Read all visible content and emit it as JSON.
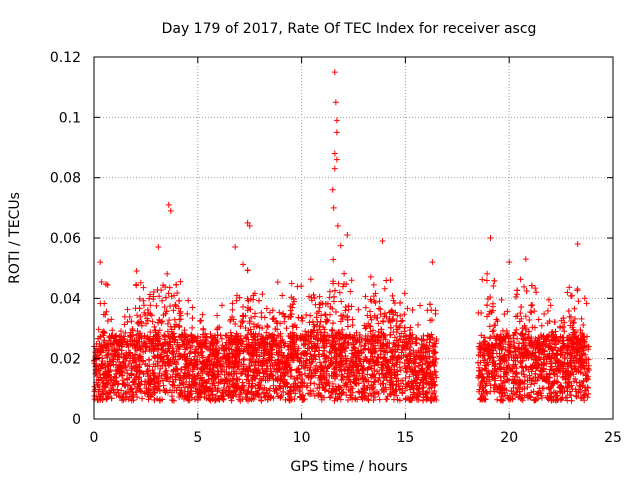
{
  "chart_data": {
    "type": "scatter",
    "title": "Day 179 of 2017, Rate Of TEC Index for receiver ascg",
    "xlabel": "GPS time / hours",
    "ylabel": "ROTI / TECUs",
    "xlim": [
      0,
      25
    ],
    "ylim": [
      0,
      0.12
    ],
    "x_ticks": [
      0,
      5,
      10,
      15,
      20,
      25
    ],
    "x_tick_labels": [
      "0",
      "5",
      "10",
      "15",
      "20",
      "25"
    ],
    "y_ticks": [
      0,
      0.02,
      0.04,
      0.06,
      0.08,
      0.1,
      0.12
    ],
    "y_tick_labels": [
      "0",
      "0.02",
      "0.04",
      "0.06",
      "0.08",
      "0.1",
      "0.12"
    ],
    "grid": true,
    "marker": "+",
    "series_color": "#ff0000",
    "data_gaps_hours": [
      [
        16.5,
        18.5
      ]
    ],
    "highlighted_points": [
      {
        "x": 11.6,
        "y": 0.115
      },
      {
        "x": 11.65,
        "y": 0.105
      },
      {
        "x": 11.7,
        "y": 0.099
      },
      {
        "x": 11.7,
        "y": 0.095
      },
      {
        "x": 11.6,
        "y": 0.088
      },
      {
        "x": 11.7,
        "y": 0.086
      },
      {
        "x": 11.6,
        "y": 0.083
      },
      {
        "x": 11.5,
        "y": 0.076
      },
      {
        "x": 11.55,
        "y": 0.07
      },
      {
        "x": 11.75,
        "y": 0.064
      },
      {
        "x": 3.6,
        "y": 0.071
      },
      {
        "x": 3.7,
        "y": 0.069
      },
      {
        "x": 7.4,
        "y": 0.065
      },
      {
        "x": 7.5,
        "y": 0.064
      },
      {
        "x": 12.2,
        "y": 0.061
      },
      {
        "x": 19.1,
        "y": 0.06
      },
      {
        "x": 23.3,
        "y": 0.058
      },
      {
        "x": 13.9,
        "y": 0.059
      },
      {
        "x": 6.8,
        "y": 0.057
      },
      {
        "x": 3.1,
        "y": 0.057
      },
      {
        "x": 0.3,
        "y": 0.052
      },
      {
        "x": 16.3,
        "y": 0.052
      },
      {
        "x": 20.0,
        "y": 0.052
      },
      {
        "x": 20.8,
        "y": 0.053
      }
    ]
  }
}
